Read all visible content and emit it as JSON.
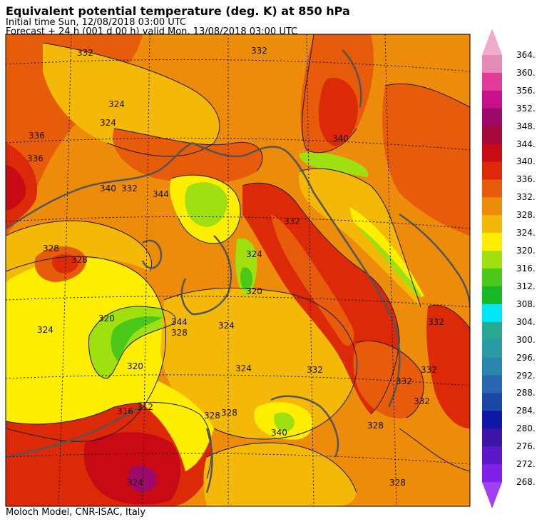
{
  "header": {
    "title": "Equivalent potential temperature (deg. K) at 850 hPa",
    "initial_time": "Initial time  Sun, 12/08/2018  03:00 UTC",
    "forecast": "Forecast  +  24 h  (001 d 00 h)  valid Mon, 13/08/2018 03:00 UTC"
  },
  "footer": {
    "credit": "Moloch Model, CNR-ISAC, Italy"
  },
  "legend": {
    "labels": [
      "364.",
      "360.",
      "356.",
      "352.",
      "348.",
      "344.",
      "340.",
      "336.",
      "332.",
      "328.",
      "324.",
      "320.",
      "316.",
      "312.",
      "308.",
      "304.",
      "300.",
      "296.",
      "292.",
      "288.",
      "284.",
      "280.",
      "276.",
      "272.",
      "268."
    ],
    "colors": [
      "#f0aacc",
      "#e68ab8",
      "#e23c9a",
      "#c8108c",
      "#9e0a6a",
      "#a8093c",
      "#c80a14",
      "#dc2a08",
      "#e65c0a",
      "#ec8c0a",
      "#f4b808",
      "#ffee00",
      "#a0e010",
      "#4cc818",
      "#18b828",
      "#00e8f8",
      "#28a890",
      "#2a9aa6",
      "#2a86ac",
      "#2a66b0",
      "#1a48a6",
      "#1016a8",
      "#3c14a8",
      "#5c18c8",
      "#8020e8",
      "#a040f0"
    ]
  },
  "map": {
    "contour_labels": [
      "332",
      "332",
      "324",
      "324",
      "336",
      "336",
      "340",
      "332",
      "328",
      "328",
      "324",
      "320",
      "320",
      "324",
      "332",
      "324",
      "344",
      "340",
      "332",
      "332",
      "332",
      "332",
      "328",
      "328",
      "328",
      "328",
      "320",
      "316",
      "312",
      "324",
      "344",
      "340",
      "332",
      "328",
      "324"
    ],
    "icons": [
      "coastline-overlay",
      "lat-lon-graticule"
    ]
  }
}
